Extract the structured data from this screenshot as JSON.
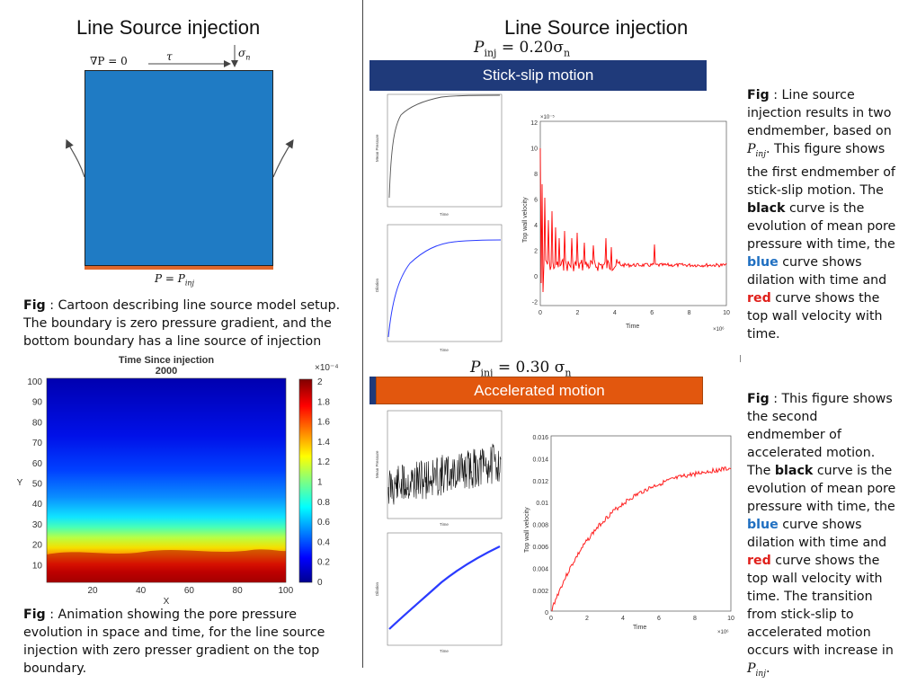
{
  "left": {
    "title": "Line Source injection",
    "cartoon": {
      "grad_label": "∇P = 0",
      "tau_label": "τ",
      "sigma_label": "σ",
      "sigma_sub": "n",
      "bottom_label": "P = P",
      "bottom_sub": "inj",
      "box_color": "#1f7bc4",
      "source_color": "#e0672a"
    },
    "caption1": {
      "fig": "Fig",
      "text": ": Cartoon describing line source model setup. The boundary is zero pressure gradient, and the bottom boundary has a line source of injection"
    },
    "heatmap": {
      "title": "Time Since injection",
      "subtitle": "2000",
      "ylabel": "Y",
      "xlabel": "X",
      "colorbar_exp": "×10⁻⁴",
      "yticks": [
        "100",
        "90",
        "80",
        "70",
        "60",
        "50",
        "40",
        "30",
        "20",
        "10"
      ],
      "xticks": [
        "20",
        "40",
        "60",
        "80",
        "100"
      ],
      "cbticks": [
        "2",
        "1.8",
        "1.6",
        "1.4",
        "1.2",
        "1",
        "0.8",
        "0.6",
        "0.4",
        "0.2",
        "0"
      ]
    },
    "caption2": {
      "fig": "Fig",
      "text": ": Animation showing the pore pressure evolution in space and time, for the line source injection with zero presser gradient on the top boundary."
    }
  },
  "right": {
    "title": "Line Source injection",
    "stick": {
      "pinj": "P",
      "pinj_sub": "inj",
      "pinj_val": " = 0.20σ",
      "pinj_val_sub": "n",
      "banner": "Stick-slip motion",
      "banner_color": "#1f3a7a"
    },
    "accel": {
      "pinj": "P",
      "pinj_sub": "inj",
      "pinj_val": " = 0.30 σ",
      "pinj_val_sub": "n",
      "banner": "Accelerated motion",
      "banner_color": "#e2570e"
    },
    "velocity1": {
      "ylabel": "Top wall velocity",
      "xlabel": "Time",
      "exp_y": "×10⁻⁵",
      "exp_x": "×10⁶",
      "yticks": [
        "12",
        "10",
        "8",
        "6",
        "4",
        "2",
        "0",
        "-2"
      ],
      "xticks": [
        "0",
        "2",
        "4",
        "6",
        "8",
        "10"
      ]
    },
    "velocity2": {
      "ylabel": "Top wall velocity",
      "xlabel": "Time",
      "exp_x": "×10⁶",
      "yticks": [
        "0.016",
        "0.014",
        "0.012",
        "0.01",
        "0.008",
        "0.006",
        "0.004",
        "0.002",
        "0"
      ],
      "xticks": [
        "0",
        "2",
        "4",
        "6",
        "8",
        "10"
      ]
    },
    "small_plots": {
      "mean_pressure": "Mean Pressure",
      "dilation": "Dilation",
      "time": "Time"
    }
  },
  "side": {
    "caption1": {
      "fig": "Fig",
      "t1": " : Line source injection results in two endmember, based on ",
      "pinj": "P",
      "pinj_sub": "inj",
      "t2": ". This figure shows the first endmember of stick-slip motion. The ",
      "black": "black",
      "t3": " curve is the evolution of mean pore pressure with time, the ",
      "blue": "blue",
      "t4": " curve shows dilation with time and ",
      "red": "red",
      "t5": " curve shows the top wall velocity with time."
    },
    "caption2": {
      "fig": "Fig",
      "t1": " : This figure shows the second endmember of accelerated motion. The ",
      "black": "black",
      "t2": " curve is the evolution of mean pore pressure with time, the ",
      "blue": "blue",
      "t3": " curve shows dilation with time and ",
      "red": "red",
      "t4": " curve shows the top wall velocity with time. The transition from stick-slip to accelerated motion occurs with increase in ",
      "pinj": "P",
      "pinj_sub": "inj",
      "t5": "."
    }
  }
}
